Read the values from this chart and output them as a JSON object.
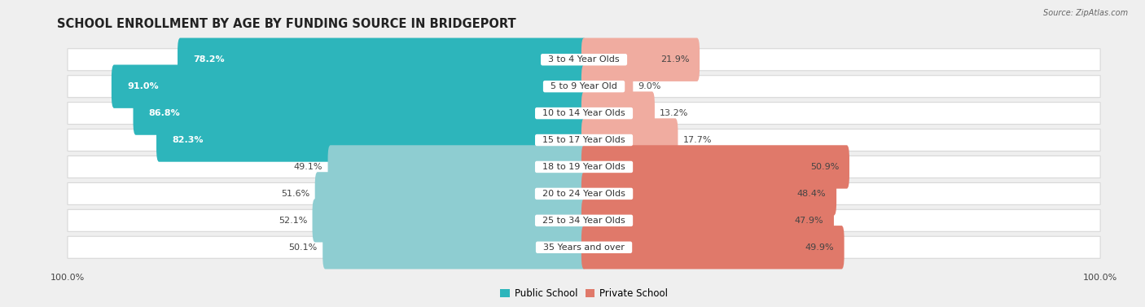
{
  "title": "SCHOOL ENROLLMENT BY AGE BY FUNDING SOURCE IN BRIDGEPORT",
  "source": "Source: ZipAtlas.com",
  "categories": [
    "3 to 4 Year Olds",
    "5 to 9 Year Old",
    "10 to 14 Year Olds",
    "15 to 17 Year Olds",
    "18 to 19 Year Olds",
    "20 to 24 Year Olds",
    "25 to 34 Year Olds",
    "35 Years and over"
  ],
  "public_values": [
    78.2,
    91.0,
    86.8,
    82.3,
    49.1,
    51.6,
    52.1,
    50.1
  ],
  "private_values": [
    21.9,
    9.0,
    13.2,
    17.7,
    50.9,
    48.4,
    47.9,
    49.9
  ],
  "public_bar_color_dark": "#2db5bb",
  "public_bar_color_light": "#8ecdd1",
  "private_bar_color_dark": "#e0796a",
  "private_bar_color_light": "#f0aca0",
  "bg_color": "#efefef",
  "row_bg_color": "#ffffff",
  "row_separator_color": "#d8d8d8",
  "title_fontsize": 10.5,
  "label_fontsize": 8.0,
  "value_fontsize": 8.0,
  "bar_height": 0.62,
  "legend_public": "Public School",
  "legend_private": "Private School"
}
